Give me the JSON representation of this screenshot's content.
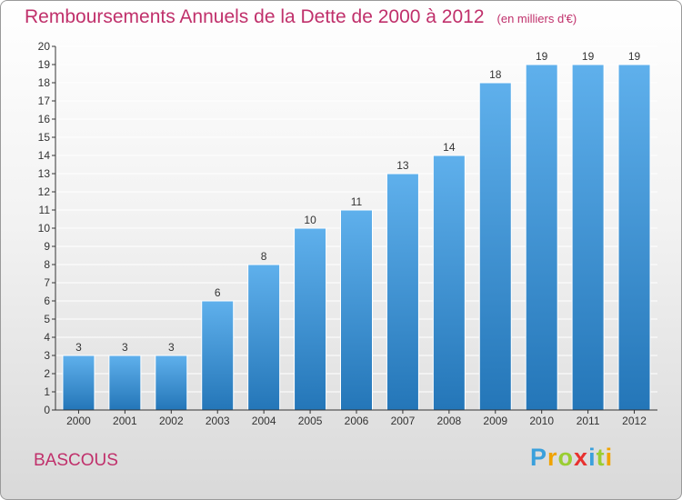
{
  "chart_data": {
    "type": "bar",
    "title": "Remboursements Annuels de la Dette de 2000 à 2012",
    "unit": "(en milliers d'€)",
    "categories": [
      "2000",
      "2001",
      "2002",
      "2003",
      "2004",
      "2005",
      "2006",
      "2007",
      "2008",
      "2009",
      "2010",
      "2011",
      "2012"
    ],
    "values": [
      3,
      3,
      3,
      6,
      8,
      10,
      11,
      13,
      14,
      18,
      19,
      19,
      19
    ],
    "yticks": [
      "0",
      "1",
      "2",
      "3",
      "4",
      "5",
      "6",
      "7",
      "8",
      "9",
      "10",
      "11",
      "12",
      "13",
      "14",
      "15",
      "16",
      "17",
      "18",
      "19",
      "20"
    ],
    "ylim": [
      0,
      20
    ],
    "xlabel": "",
    "ylabel": "",
    "bar_color": "#3d8fd6"
  },
  "footer": {
    "commune": "BASCOUS",
    "logo": "Proxiti"
  },
  "colors": {
    "accent": "#c0306b",
    "logo": [
      "#3aa0dc",
      "#f0a300",
      "#9acd32",
      "#e8312f",
      "#3aa0dc",
      "#9acd32",
      "#f0a300"
    ]
  }
}
